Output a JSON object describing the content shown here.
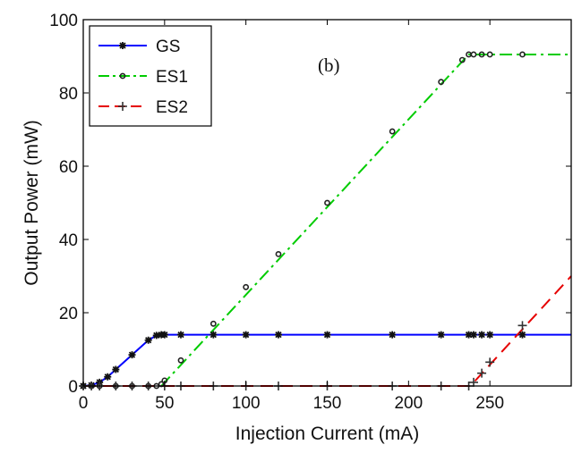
{
  "chart_data": {
    "type": "line",
    "annotation": "(b)",
    "xlabel": "Injection Current (mA)",
    "ylabel": "Output Power (mW)",
    "xlim": [
      0,
      300
    ],
    "ylim": [
      0,
      100
    ],
    "xticks": [
      0,
      50,
      100,
      150,
      200,
      250
    ],
    "yticks": [
      0,
      20,
      40,
      60,
      80,
      100
    ],
    "legend_position": "top-left",
    "series": [
      {
        "name": "GS",
        "color": "#0000ff",
        "line_style": "solid",
        "marker": "star",
        "x": [
          0,
          5,
          10,
          15,
          20,
          30,
          40,
          45,
          48,
          50,
          60,
          80,
          100,
          120,
          150,
          190,
          220,
          237,
          240,
          245,
          250,
          270
        ],
        "y": [
          0,
          0.2,
          1.0,
          2.5,
          4.5,
          8.5,
          12.5,
          13.8,
          14,
          14,
          14,
          14,
          14,
          14,
          14,
          14,
          14,
          14,
          14,
          14,
          14,
          14
        ],
        "line_x": [
          0,
          5,
          10,
          15,
          20,
          30,
          40,
          45,
          48,
          300
        ],
        "line_y": [
          0,
          0.2,
          1.0,
          2.5,
          4.5,
          8.5,
          12.5,
          13.8,
          14,
          14
        ]
      },
      {
        "name": "ES1",
        "color": "#00cc00",
        "line_style": "dashdot",
        "marker": "circle",
        "x": [
          0,
          5,
          10,
          20,
          30,
          40,
          45,
          48,
          50,
          60,
          80,
          100,
          120,
          150,
          190,
          220,
          233,
          237,
          240,
          245,
          250,
          270
        ],
        "y": [
          0,
          0,
          0,
          0,
          0,
          0,
          0,
          0.5,
          1.5,
          7,
          17,
          27,
          36,
          50,
          69.5,
          83,
          89,
          90.5,
          90.5,
          90.5,
          90.5,
          90.5
        ],
        "line_x": [
          48,
          237,
          300
        ],
        "line_y": [
          0,
          90.5,
          90.5
        ]
      },
      {
        "name": "ES2",
        "color": "#e60000",
        "line_style": "dashed",
        "marker": "plus",
        "x": [
          0,
          5,
          10,
          20,
          30,
          40,
          50,
          60,
          80,
          100,
          120,
          150,
          190,
          220,
          237,
          240,
          245,
          250,
          270
        ],
        "y": [
          0,
          0,
          0,
          0,
          0,
          0,
          0,
          0,
          0,
          0,
          0,
          0,
          0,
          0,
          0,
          1,
          3.5,
          6.5,
          16.5
        ],
        "line_x": [
          0,
          238,
          300
        ],
        "line_y": [
          0,
          0,
          30
        ]
      }
    ]
  }
}
